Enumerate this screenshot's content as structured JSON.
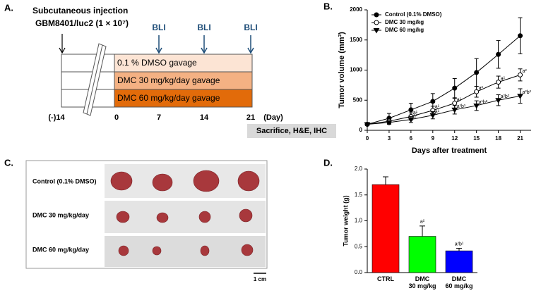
{
  "diagram": {
    "label": "A.",
    "injection_line1": "Subcutaneous injection",
    "injection_line2": "GBM8401/luc2 (1 × 10⁷)",
    "bli": [
      "BLI",
      "BLI",
      "BLI"
    ],
    "groups": [
      "0.1 % DMSO gavage",
      "DMC 30 mg/kg/day gavage",
      "DMC 60 mg/kg/day gavage"
    ],
    "days": [
      "(-)14",
      "0",
      "7",
      "14",
      "21",
      "(Day)"
    ],
    "endpoint": "Sacrifice, H&E, IHC"
  },
  "photo": {
    "label": "C.",
    "rows": [
      "Control (0.1% DMSO)",
      "DMC 30 mg/kg/day",
      "DMC 60 mg/kg/day"
    ],
    "scale": "1 cm"
  },
  "chart_data": [
    {
      "type": "line",
      "panel": "B.",
      "x_label": "Days after treatment",
      "y_label": "Tumor volume (mm³)",
      "x": [
        0,
        3,
        6,
        9,
        12,
        15,
        18,
        21
      ],
      "xlim": [
        0,
        22.5
      ],
      "xticks": [
        0,
        3,
        6,
        9,
        12,
        15,
        18,
        21
      ],
      "ylim": [
        0,
        2000
      ],
      "yticks": [
        0,
        500,
        1000,
        1500,
        2000
      ],
      "series": [
        {
          "name": "Control (0.1% DMSO)",
          "color": "#000000",
          "marker": "circle",
          "values": [
            100,
            200,
            340,
            480,
            700,
            960,
            1260,
            1570
          ],
          "errors": [
            20,
            80,
            110,
            130,
            160,
            230,
            230,
            300
          ]
        },
        {
          "name": "DMC 30 mg/kg",
          "color": "#000000",
          "marker": "open-circle",
          "values": [
            100,
            150,
            230,
            330,
            450,
            640,
            800,
            920
          ],
          "errors": [
            10,
            40,
            60,
            70,
            80,
            90,
            100,
            100
          ],
          "annotations": [
            null,
            null,
            "a¹",
            "a¹",
            "a¹",
            "a²",
            "a²",
            "a²"
          ]
        },
        {
          "name": "DMC 60 mg/kg",
          "color": "#000000",
          "marker": "triangle-down",
          "values": [
            100,
            130,
            180,
            250,
            340,
            410,
            500,
            570
          ],
          "errors": [
            10,
            30,
            50,
            60,
            70,
            80,
            90,
            120
          ],
          "annotations": [
            null,
            null,
            "a¹",
            "a¹",
            "a¹b¹",
            "a¹b²",
            "a²b²",
            "a²b²"
          ]
        }
      ]
    },
    {
      "type": "bar",
      "panel": "D.",
      "y_label": "Tumor weight (g)",
      "categories": [
        "CTRL",
        "DMC\n30 mg/kg",
        "DMC\n60 mg/kg"
      ],
      "values": [
        1.7,
        0.7,
        0.42
      ],
      "errors": [
        0.15,
        0.2,
        0.05
      ],
      "colors": [
        "#ff0000",
        "#00ff00",
        "#0000ff"
      ],
      "value_labels": [
        null,
        "a²",
        "a²b¹"
      ],
      "ylim": [
        0,
        2
      ],
      "yticks": [
        {
          "value": 0,
          "label": "0.0"
        },
        0.5,
        {
          "value": 1,
          "label": "1.0"
        },
        1.5,
        {
          "value": 2,
          "label": "2.0"
        }
      ]
    }
  ]
}
